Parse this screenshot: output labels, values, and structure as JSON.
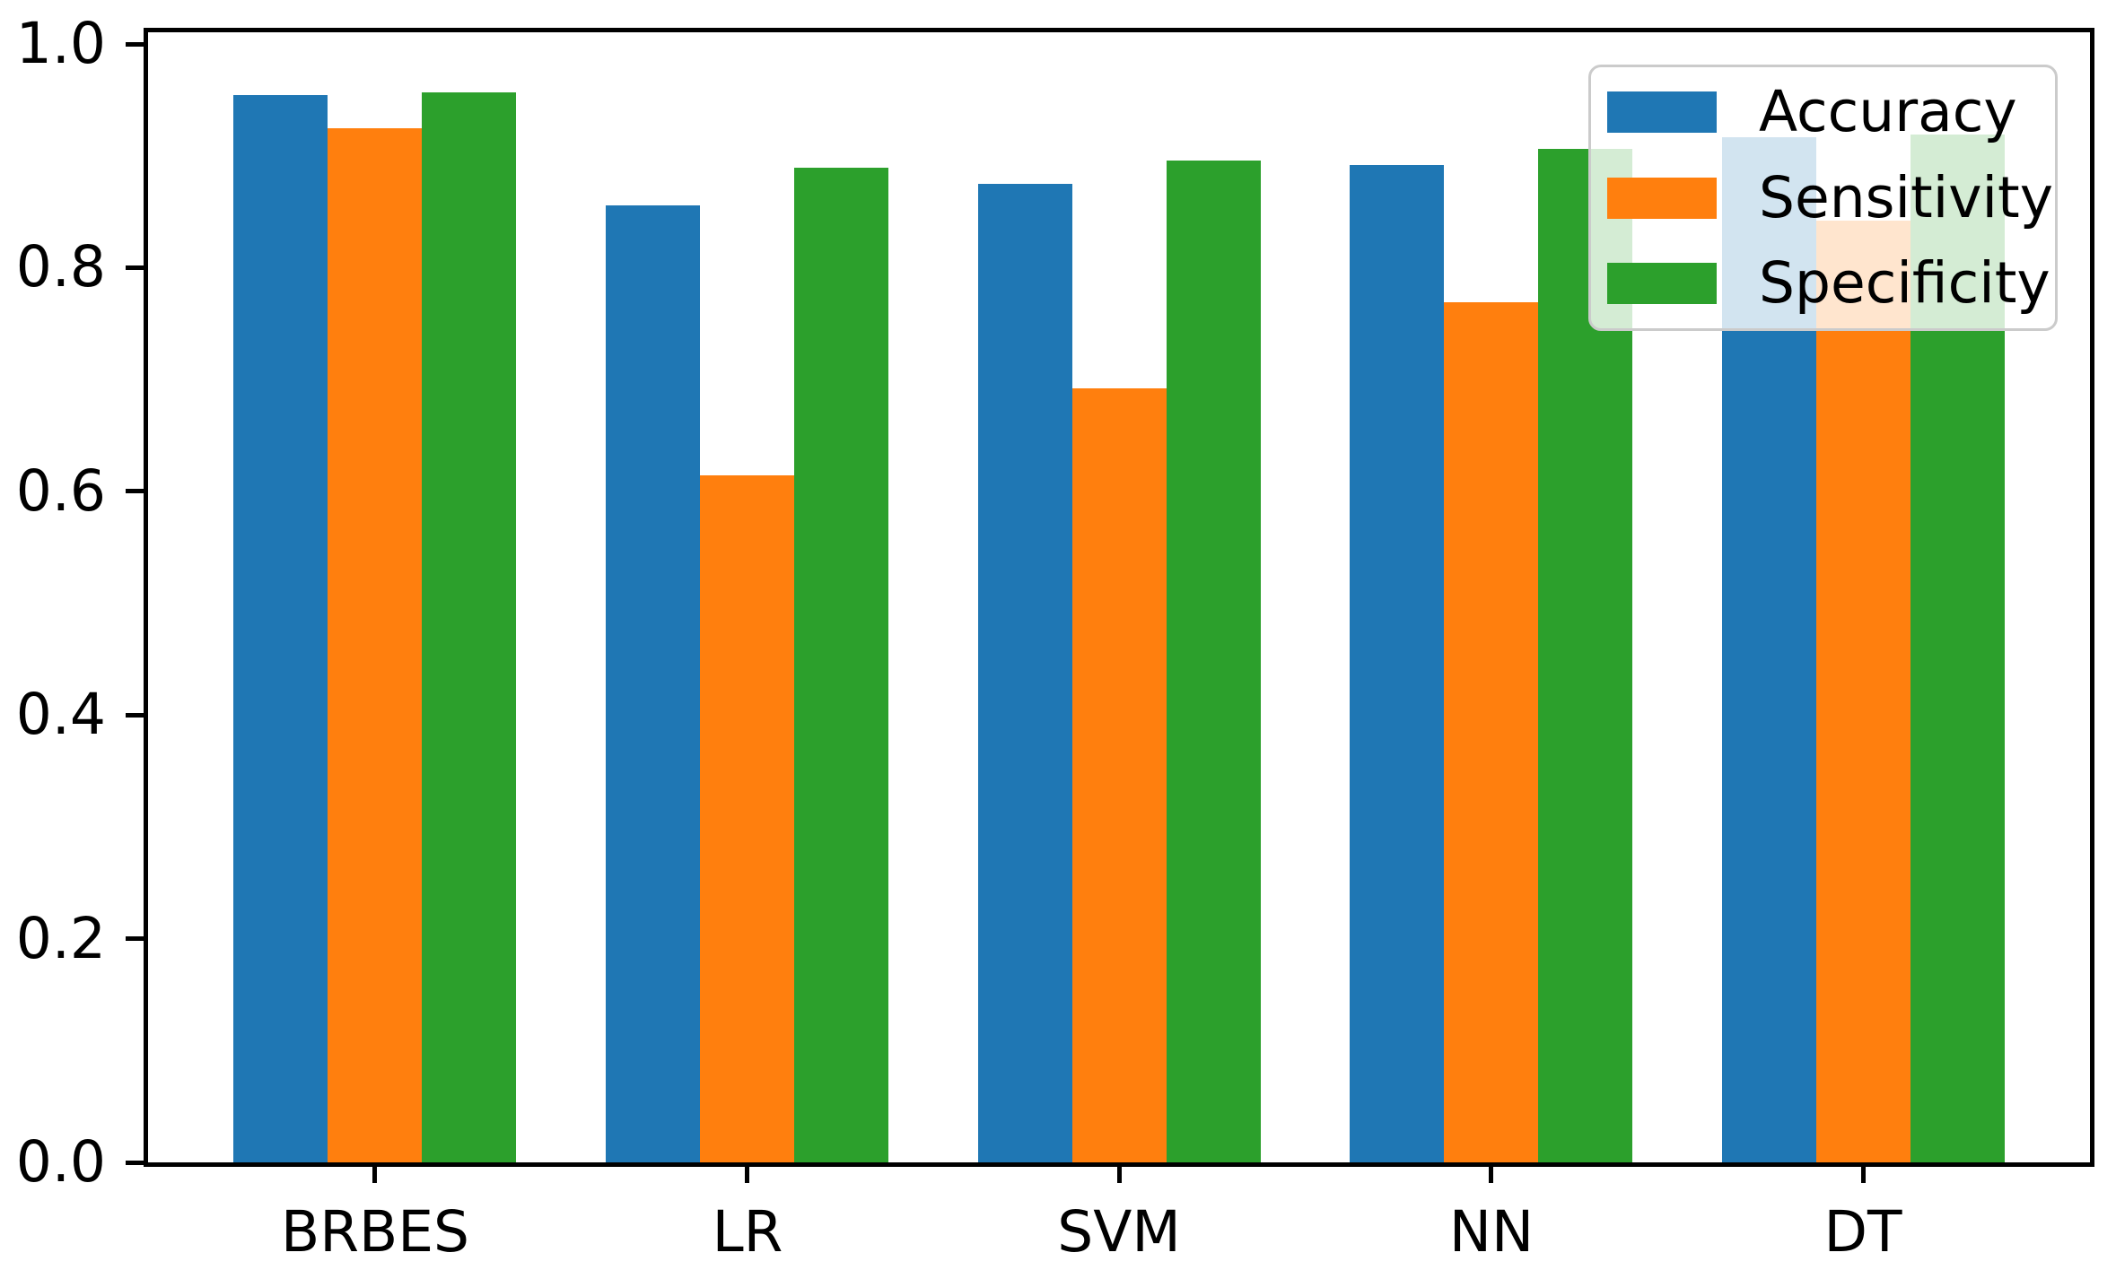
{
  "chart_data": {
    "type": "bar",
    "title": "",
    "xlabel": "",
    "ylabel": "",
    "categories": [
      "BRBES",
      "LR",
      "SVM",
      "NN",
      "DT"
    ],
    "series": [
      {
        "name": "Accuracy",
        "color": "#1f77b4",
        "values": [
          0.954,
          0.856,
          0.875,
          0.892,
          0.917
        ]
      },
      {
        "name": "Sensitivity",
        "color": "#ff7f0e",
        "values": [
          0.925,
          0.614,
          0.692,
          0.769,
          0.842
        ]
      },
      {
        "name": "Specificity",
        "color": "#2ca02c",
        "values": [
          0.957,
          0.889,
          0.896,
          0.906,
          0.919
        ]
      }
    ],
    "ylim": [
      0.0,
      1.01
    ],
    "yticks": [
      0.0,
      0.2,
      0.4,
      0.6,
      0.8,
      1.0
    ],
    "yticklabels": [
      "0.0",
      "0.2",
      "0.4",
      "0.6",
      "0.8",
      "1.0"
    ],
    "grid": false,
    "legend": {
      "position": "upper right",
      "entries": [
        "Accuracy",
        "Sensitivity",
        "Specificity"
      ],
      "frame_alpha": 0.8,
      "border_color": "#cbcbcb"
    },
    "axis_color": "#000000"
  }
}
